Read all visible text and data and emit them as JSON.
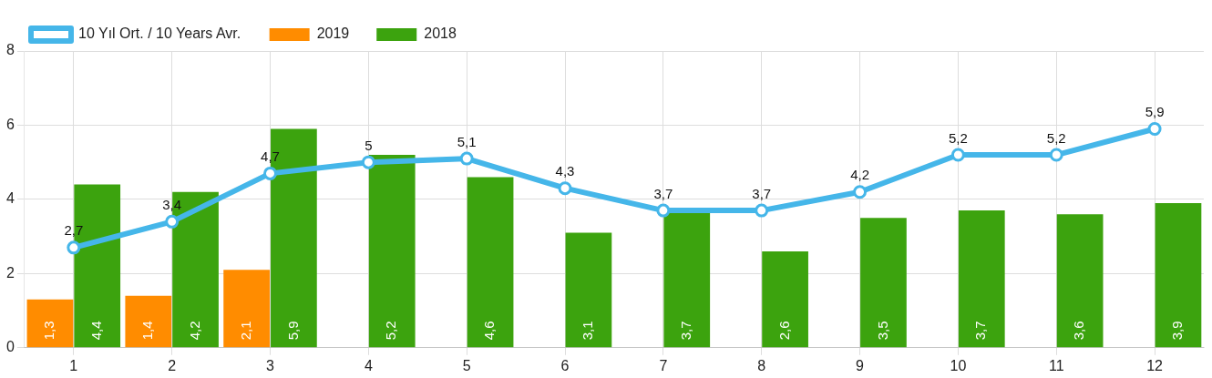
{
  "chart_data": {
    "type": "bar",
    "categories": [
      "1",
      "2",
      "3",
      "4",
      "5",
      "6",
      "7",
      "8",
      "9",
      "10",
      "11",
      "12"
    ],
    "series": [
      {
        "name": "2019",
        "color": "#ff8c00",
        "values": [
          1.3,
          1.4,
          2.1,
          null,
          null,
          null,
          null,
          null,
          null,
          null,
          null,
          null
        ],
        "value_labels": [
          "1,3",
          "1,4",
          "2,1",
          null,
          null,
          null,
          null,
          null,
          null,
          null,
          null,
          null
        ]
      },
      {
        "name": "2018",
        "color": "#3ca30e",
        "values": [
          4.4,
          4.2,
          5.9,
          5.2,
          4.6,
          3.1,
          3.7,
          2.6,
          3.5,
          3.7,
          3.6,
          3.9
        ],
        "value_labels": [
          "4,4",
          "4,2",
          "5,9",
          "5,2",
          "4,6",
          "3,1",
          "3,7",
          "2,6",
          "3,5",
          "3,7",
          "3,6",
          "3,9"
        ]
      },
      {
        "name": "10 Yıl Ort. / 10 Years Avr.",
        "type": "line",
        "color": "#45b6e9",
        "marker": "circle",
        "values": [
          2.7,
          3.4,
          4.7,
          5,
          5.1,
          4.3,
          3.7,
          3.7,
          4.2,
          5.2,
          5.2,
          5.9
        ],
        "value_labels": [
          "2,7",
          "3,4",
          "4,7",
          "5",
          "5,1",
          "4,3",
          "3,7",
          "3,7",
          "4,2",
          "5,2",
          "5,2",
          "5,9"
        ]
      }
    ],
    "ylim": [
      0,
      8
    ],
    "yticks": [
      0,
      2,
      4,
      6,
      8
    ],
    "grid": true,
    "legend": "top"
  }
}
